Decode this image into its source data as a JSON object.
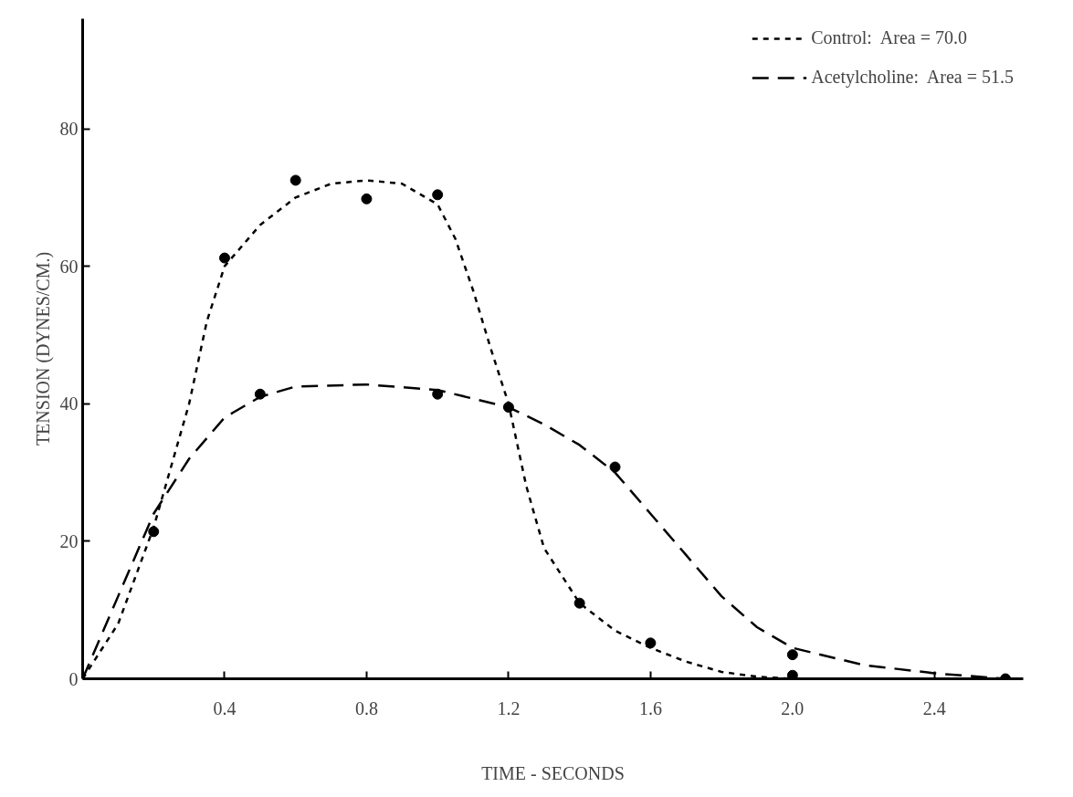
{
  "chart_data": {
    "type": "line",
    "xlabel": "TIME - SECONDS",
    "ylabel": "TENSION (DYNES/CM.)",
    "xlim": [
      0,
      2.65
    ],
    "ylim": [
      0,
      96
    ],
    "xticks": [
      0.4,
      0.8,
      1.2,
      1.6,
      {
        "value": 2,
        "label": "2.0"
      },
      2.4
    ],
    "yticks": [
      0,
      20,
      40,
      60,
      80
    ],
    "grid": false,
    "legend": "top right",
    "series": [
      {
        "name": "Control:  Area = 70.0",
        "line_style": "dotted",
        "color": "#000000",
        "x": [
          0,
          0.1,
          0.2,
          0.3,
          0.35,
          0.4,
          0.5,
          0.6,
          0.7,
          0.8,
          0.9,
          1.0,
          1.05,
          1.1,
          1.15,
          1.2,
          1.25,
          1.3,
          1.4,
          1.5,
          1.6,
          1.7,
          1.8,
          1.9,
          2.0
        ],
        "values": [
          0,
          8,
          22,
          40,
          52,
          60,
          66,
          70,
          72,
          72.5,
          72,
          69,
          64,
          56.5,
          48,
          40,
          28,
          19,
          11,
          7,
          4.5,
          2.5,
          1,
          0.3,
          0
        ]
      },
      {
        "name": "Acetylcholine:  Area = 51.5",
        "line_style": "dashed",
        "color": "#000000",
        "x": [
          0,
          0.1,
          0.2,
          0.3,
          0.4,
          0.5,
          0.6,
          0.8,
          1.0,
          1.2,
          1.3,
          1.4,
          1.5,
          1.6,
          1.7,
          1.8,
          1.9,
          2.0,
          2.2,
          2.4,
          2.6
        ],
        "values": [
          0,
          12,
          24,
          32,
          38,
          41,
          42.5,
          42.8,
          42,
          39.5,
          37,
          34,
          30,
          24,
          18,
          12,
          7.5,
          4.5,
          2,
          0.8,
          0
        ]
      },
      {
        "type": "scatter",
        "marker": "circle",
        "color": "#000000",
        "x": [
          0.2,
          0.4,
          0.6,
          0.8,
          1.0,
          1.4,
          1.6,
          2.0
        ],
        "values": [
          21.4,
          61.2,
          72.5,
          69.8,
          70.4,
          11,
          5.2,
          0.5
        ]
      },
      {
        "type": "scatter",
        "marker": "circle",
        "color": "#000000",
        "x": [
          0.5,
          1.0,
          1.2,
          1.5,
          2.0,
          2.6
        ],
        "values": [
          41.4,
          41.4,
          39.5,
          30.8,
          3.5,
          0
        ]
      }
    ]
  }
}
